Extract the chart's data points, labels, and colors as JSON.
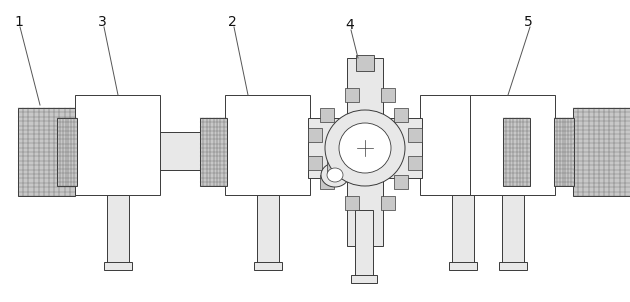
{
  "bg": "#ffffff",
  "lc": "#3a3a3a",
  "fc_white": "#ffffff",
  "fc_light": "#e8e8e8",
  "fc_gray": "#c8c8c8",
  "fc_dark": "#909090",
  "thread_color": "#555555",
  "fig_width": 6.3,
  "fig_height": 3.02,
  "dpi": 100
}
